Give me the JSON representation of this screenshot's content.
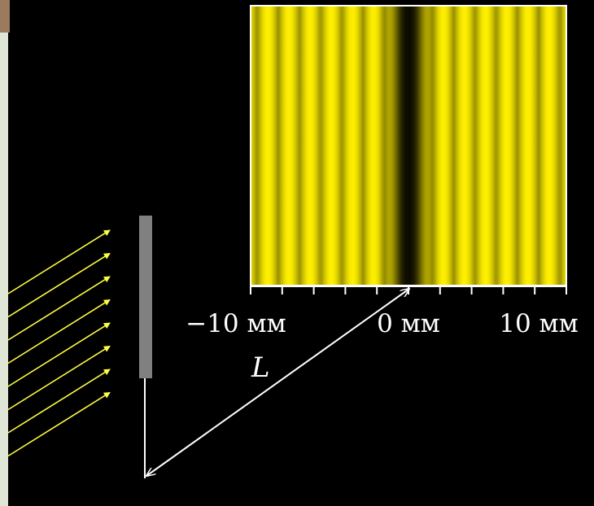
{
  "diagram": {
    "type": "single-slit diffraction",
    "colors": {
      "background": "#000000",
      "rays": "#ffff40",
      "slit_screen": "#808080",
      "pattern_bright": "#fff000",
      "pattern_dark": "#000000",
      "lines": "#ffffff",
      "slide_edge": "#dfe6d6",
      "corner_tab": "#9c7a5e"
    },
    "pattern_scale_mm": [
      -12.5,
      12.5
    ],
    "axis": {
      "tick_labels": [
        {
          "value": -10,
          "text": "−10 мм"
        },
        {
          "value": 0,
          "text": "0 мм"
        },
        {
          "value": 10,
          "text": "10 мм"
        }
      ],
      "minor_tick_count": 11
    },
    "distance_label": "L",
    "ray_count": 8
  }
}
